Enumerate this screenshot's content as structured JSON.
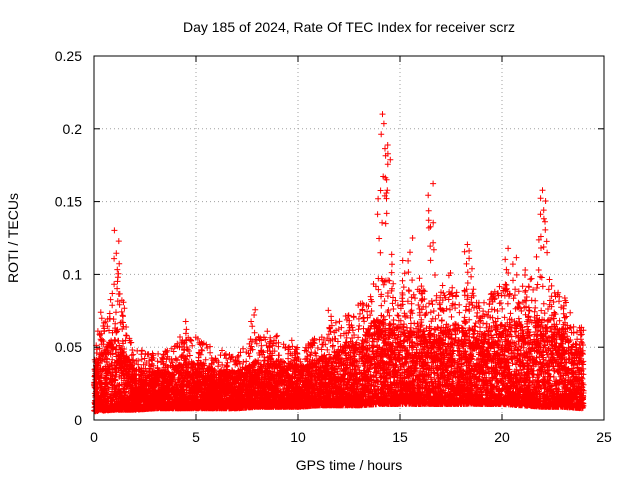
{
  "chart_data": {
    "type": "scatter",
    "title": "Day 185 of 2024, Rate Of TEC Index for receiver scrz",
    "xlabel": "GPS time / hours",
    "ylabel": "ROTI / TECUs",
    "xlim": [
      0,
      25
    ],
    "ylim": [
      0,
      0.25
    ],
    "xticks": [
      0,
      5,
      10,
      15,
      20,
      25
    ],
    "yticks": [
      0,
      0.05,
      0.1,
      0.15,
      0.2,
      0.25
    ],
    "xtick_labels": [
      "0",
      "5",
      "10",
      "15",
      "20",
      "25"
    ],
    "ytick_labels": [
      "0",
      "0.05",
      "0.1",
      "0.15",
      "0.2",
      "0.25"
    ],
    "grid": true,
    "marker": "+",
    "color": "#ff0000",
    "series": [
      {
        "name": "ROTI",
        "x": [
          0.2,
          0.4,
          0.9,
          1.1,
          1.2,
          1.3,
          1.5,
          2.5,
          3.5,
          4.3,
          4.5,
          5.2,
          6.5,
          7.8,
          8.6,
          9.6,
          10.5,
          11.6,
          12.6,
          13.5,
          14.0,
          14.2,
          14.3,
          14.4,
          14.6,
          15.2,
          15.5,
          16.0,
          16.5,
          16.6,
          17.0,
          17.5,
          18.2,
          18.5,
          19.5,
          20.2,
          20.6,
          21.2,
          21.8,
          22.0,
          22.1,
          22.5,
          23.0,
          23.8
        ],
        "y": [
          0.04,
          0.075,
          0.095,
          0.132,
          0.11,
          0.09,
          0.081,
          0.04,
          0.045,
          0.058,
          0.068,
          0.05,
          0.04,
          0.077,
          0.062,
          0.055,
          0.045,
          0.077,
          0.065,
          0.088,
          0.16,
          0.215,
          0.205,
          0.185,
          0.115,
          0.11,
          0.125,
          0.1,
          0.167,
          0.14,
          0.095,
          0.105,
          0.122,
          0.118,
          0.09,
          0.12,
          0.115,
          0.105,
          0.125,
          0.163,
          0.155,
          0.09,
          0.08,
          0.06
        ]
      }
    ],
    "envelope": {
      "description": "upper envelope of the dense ROTI cloud",
      "x": [
        0,
        1,
        2,
        3,
        4,
        5,
        6,
        7,
        8,
        9,
        10,
        11,
        12,
        13,
        14,
        15,
        16,
        17,
        18,
        19,
        20,
        21,
        22,
        23,
        24
      ],
      "y_max": [
        0.04,
        0.055,
        0.034,
        0.032,
        0.036,
        0.04,
        0.033,
        0.033,
        0.04,
        0.04,
        0.036,
        0.04,
        0.048,
        0.055,
        0.07,
        0.062,
        0.062,
        0.062,
        0.064,
        0.058,
        0.064,
        0.066,
        0.07,
        0.06,
        0.045
      ],
      "y_min": [
        0.006,
        0.007,
        0.007,
        0.008,
        0.008,
        0.008,
        0.008,
        0.008,
        0.009,
        0.009,
        0.009,
        0.01,
        0.01,
        0.01,
        0.011,
        0.011,
        0.011,
        0.011,
        0.011,
        0.011,
        0.011,
        0.01,
        0.009,
        0.009,
        0.008
      ]
    }
  }
}
